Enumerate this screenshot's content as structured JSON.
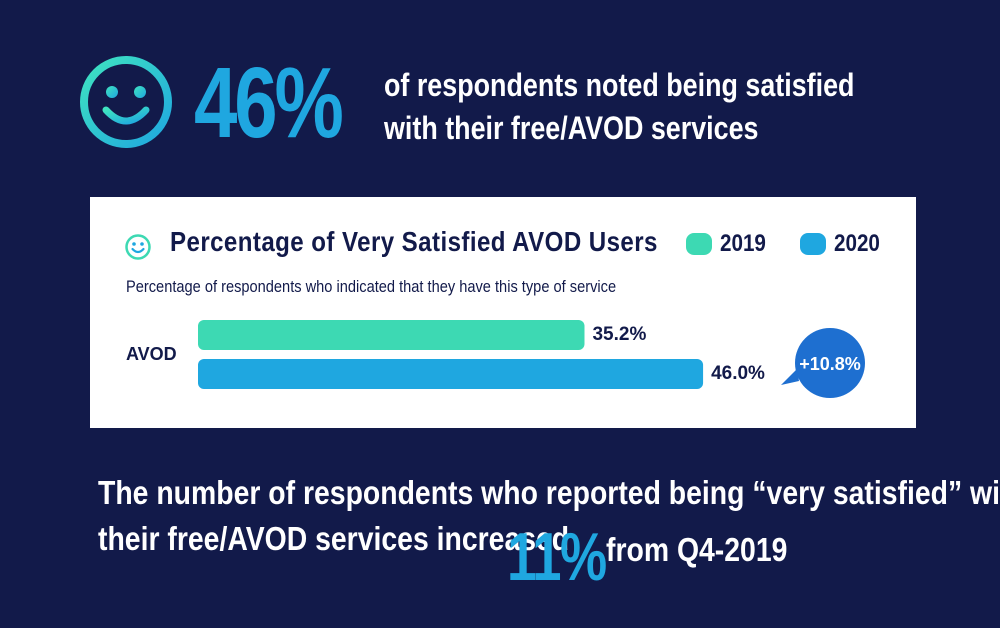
{
  "headline": {
    "stat": "46%",
    "text_line1": "of respondents noted being satisfied",
    "text_line2": "with their free/AVOD services",
    "icon": "smiley-icon"
  },
  "colors": {
    "background": "#121a4a",
    "accent_blue": "#1fa7e0",
    "accent_teal": "#3dd9b3",
    "badge_blue": "#1e6fd0",
    "icon_gradient_start": "#3fe3c0",
    "icon_gradient_end": "#1fa7e0"
  },
  "chart_data": {
    "type": "bar",
    "orientation": "horizontal",
    "title": "Percentage of Very Satisfied AVOD Users",
    "subtitle": "Percentage of respondents who indicated that they have this type of service",
    "categories": [
      "AVOD"
    ],
    "series": [
      {
        "name": "2019",
        "values": [
          35.2
        ],
        "labels": [
          "35.2%"
        ],
        "color": "#3dd9b3"
      },
      {
        "name": "2020",
        "values": [
          46.0
        ],
        "labels": [
          "46.0%"
        ],
        "color": "#1fa7e0"
      }
    ],
    "xlim": [
      0,
      60
    ],
    "grid": false,
    "legend": "top-right",
    "annotation": "+10.8%"
  },
  "footer": {
    "line1": "The number of respondents who reported being “very satisfied” with",
    "line2": "their free/AVOD services increased",
    "stat": "11%",
    "tail": "from Q4-2019"
  }
}
